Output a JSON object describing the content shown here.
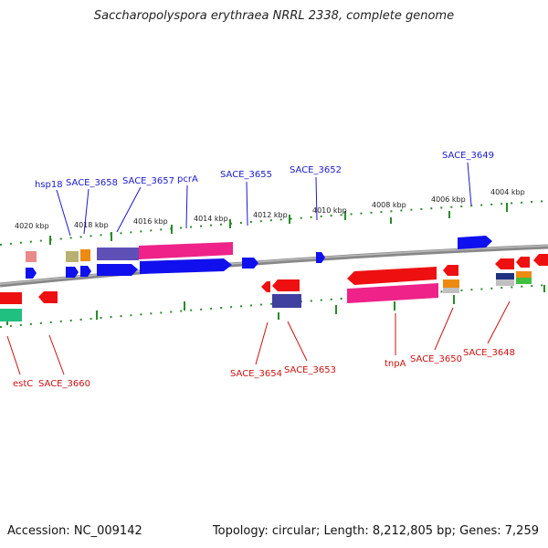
{
  "title": "Saccharopolyspora erythraea NRRL 2338, complete genome",
  "footer": {
    "accession": "Accession: NC_009142",
    "topology": "Topology: circular; Length: 8,212,805 bp; Genes: 7,259"
  },
  "scale_labels": [
    "4020 kbp",
    "4018 kbp",
    "4016 kbp",
    "4014 kbp",
    "4012 kbp",
    "4010 kbp",
    "4008 kbp",
    "4006 kbp",
    "4004 kbp"
  ],
  "forward_genes": [
    "hsp18",
    "SACE_3658",
    "SACE_3657",
    "pcrA",
    "SACE_3655",
    "SACE_3652",
    "SACE_3649"
  ],
  "reverse_genes": [
    "estC",
    "SACE_3660",
    "SACE_3654",
    "SACE_3653",
    "tnpA",
    "SACE_3650",
    "SACE_3648"
  ],
  "colors": {
    "forward_gene": "#1010ee",
    "reverse_gene": "#ee1010",
    "forward_label": "#1a1acc",
    "reverse_label": "#cc1111",
    "tick": "#228822",
    "backbone": "#888888"
  }
}
